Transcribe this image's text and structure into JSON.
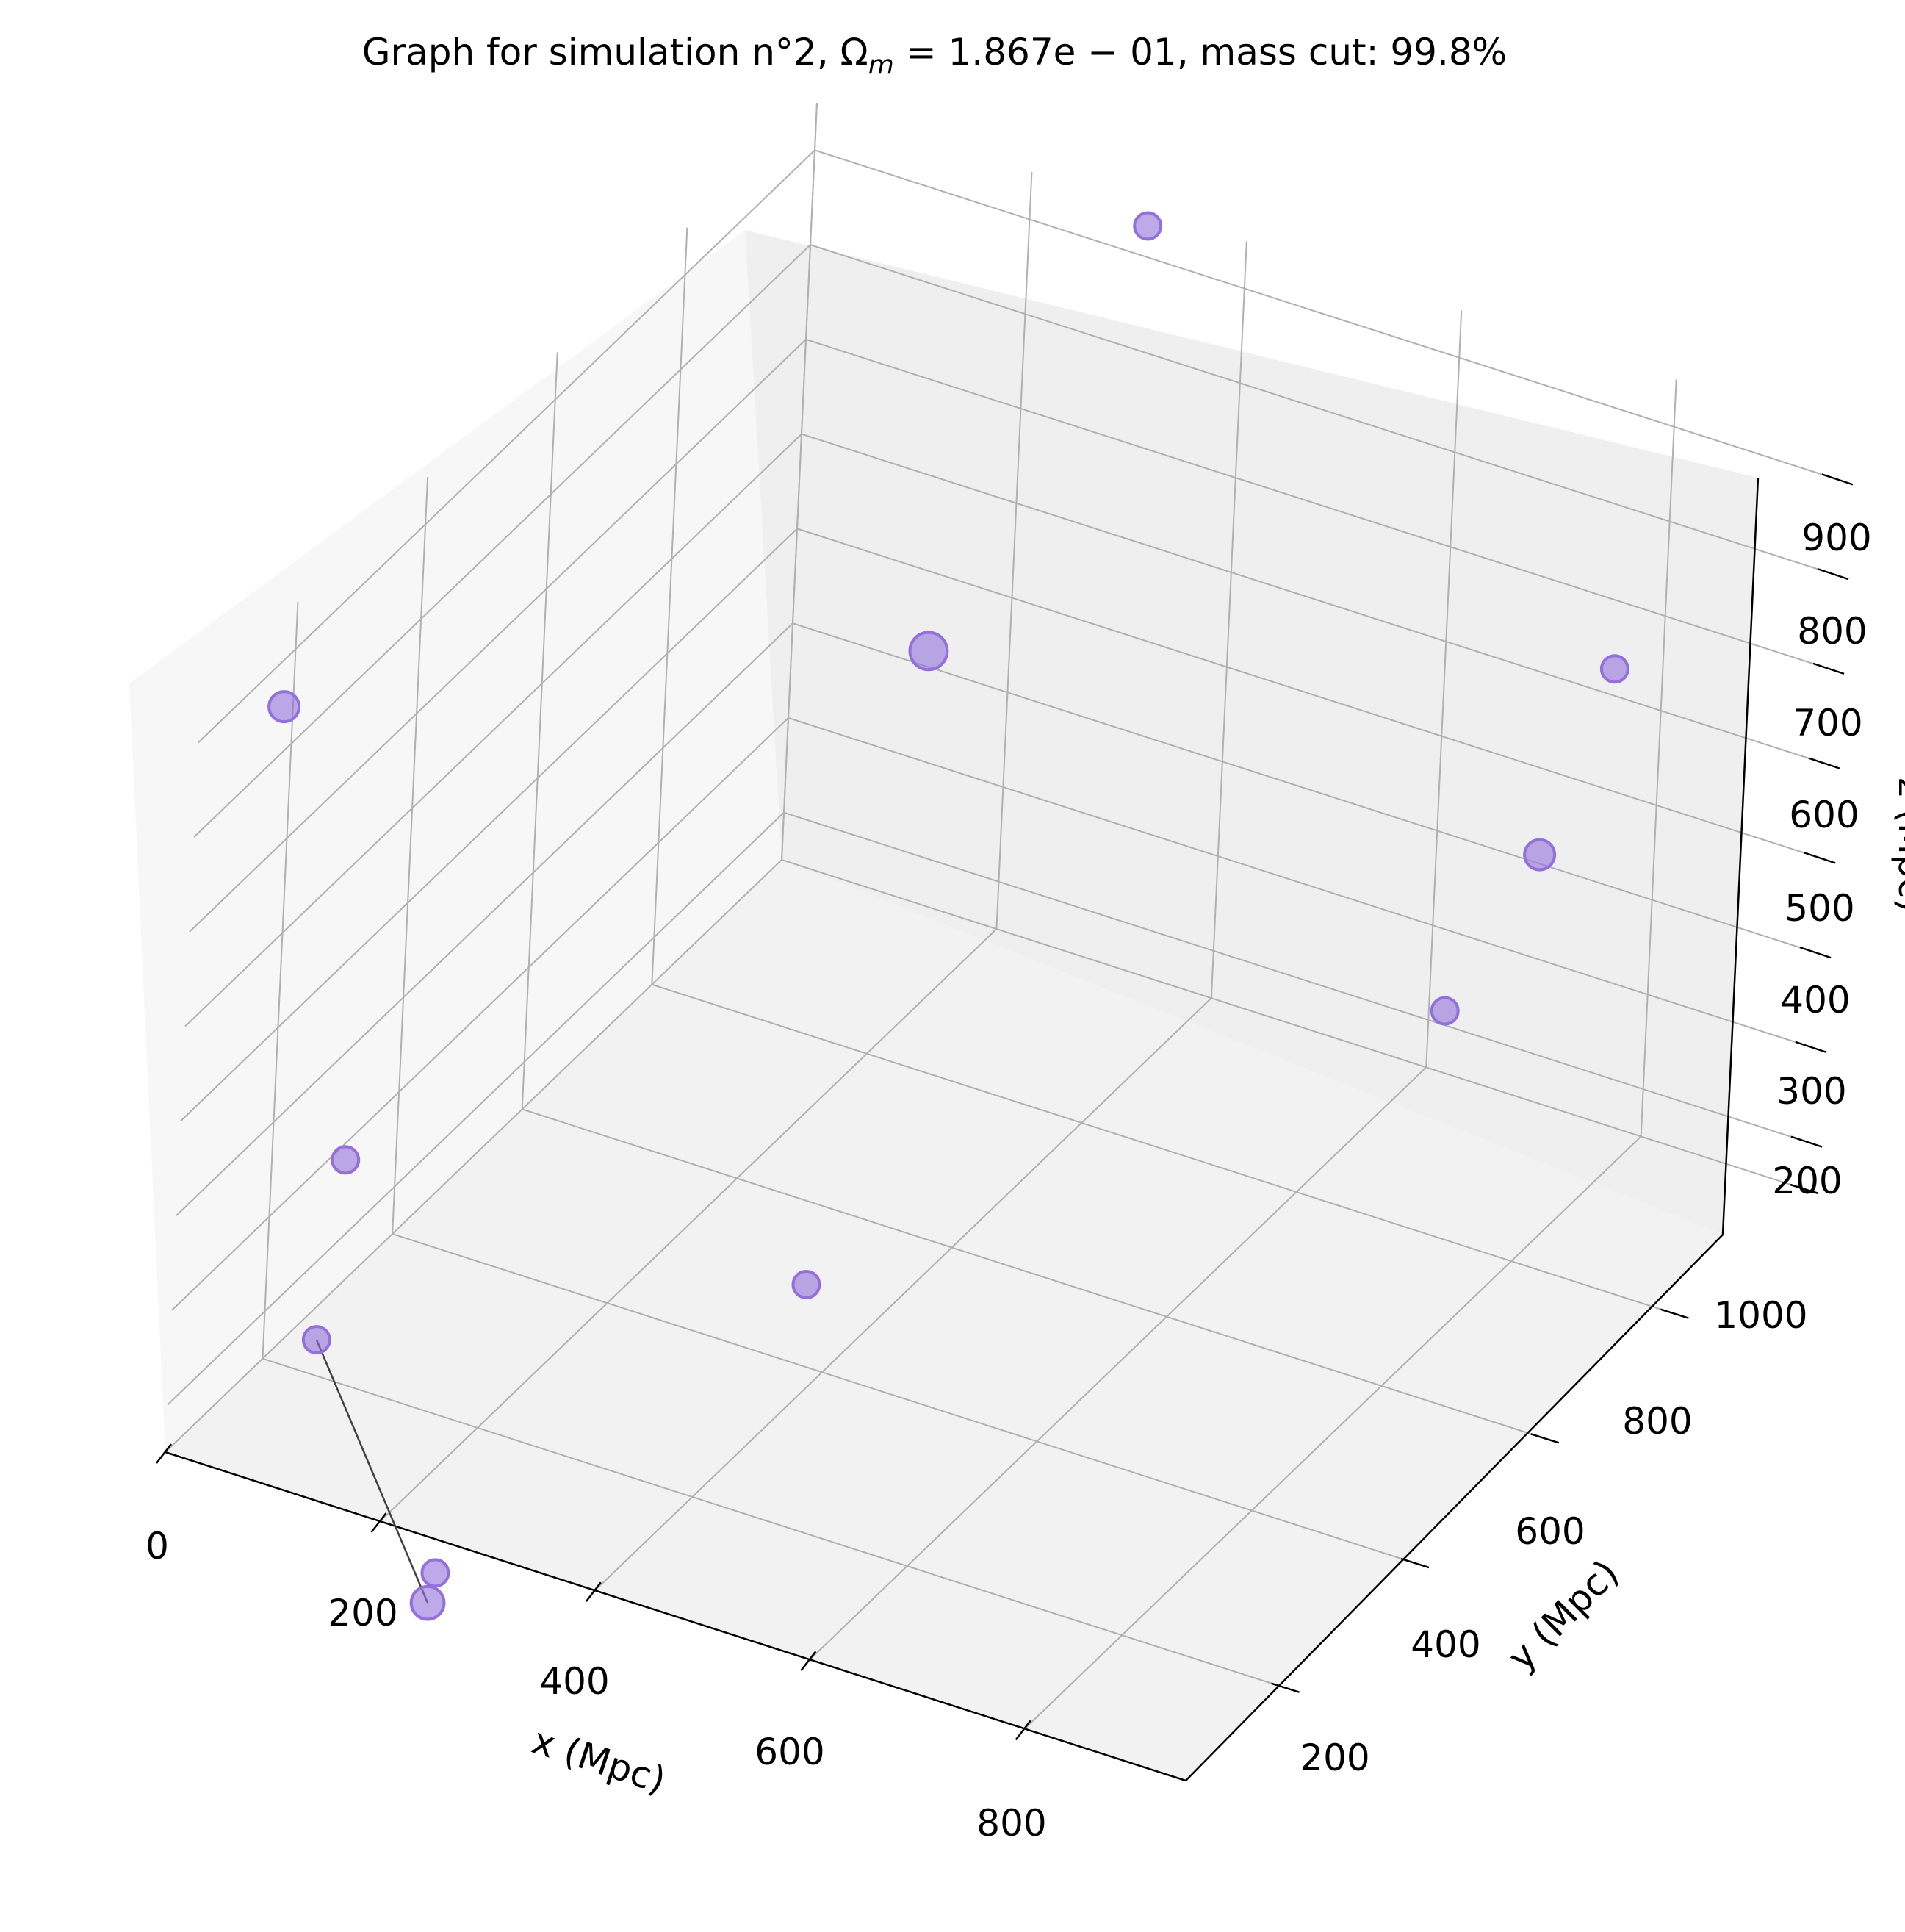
{
  "chart_data": {
    "type": "scatter",
    "subtype": "3d-scatter-graph",
    "title": "Graph for simulation n°2, Ω_m = 1.867e − 01, mass cut: 99.8%",
    "title_parts": {
      "prefix": "Graph for simulation n°2, ",
      "omega": "Ω",
      "omega_sub": "m",
      "equation": " = 1.867e − 01",
      "suffix": ", mass cut: 99.8%"
    },
    "xlabel": "x (Mpc)",
    "ylabel": "y (Mpc)",
    "zlabel": "z (Mpc)",
    "xlim": [
      0,
      950
    ],
    "ylim": [
      50,
      1000
    ],
    "zlim": [
      150,
      950
    ],
    "x_ticks": [
      "0",
      "200",
      "400",
      "600",
      "800"
    ],
    "y_ticks": [
      "200",
      "400",
      "600",
      "800",
      "1000"
    ],
    "z_ticks": [
      "200",
      "300",
      "400",
      "500",
      "600",
      "700",
      "800",
      "900"
    ],
    "grid": true,
    "marker_color": "#9370DB",
    "edge_color": "#404040",
    "points": [
      {
        "x": 60,
        "y": 80,
        "z": 940,
        "size": 2
      },
      {
        "x": 130,
        "y": 90,
        "z": 480,
        "size": 1
      },
      {
        "x": 60,
        "y": 180,
        "z": 205,
        "size": 1
      },
      {
        "x": 230,
        "y": 90,
        "z": 80,
        "size": 1
      },
      {
        "x": 230,
        "y": 80,
        "z": 55,
        "size": 3
      },
      {
        "x": 410,
        "y": 500,
        "z": 850,
        "size": 5
      },
      {
        "x": 450,
        "y": 280,
        "z": 340,
        "size": 1
      },
      {
        "x": 320,
        "y": 980,
        "z": 950,
        "size": 1
      },
      {
        "x": 700,
        "y": 850,
        "z": 345,
        "size": 1
      },
      {
        "x": 790,
        "y": 940,
        "z": 680,
        "size": 1
      },
      {
        "x": 820,
        "y": 780,
        "z": 600,
        "size": 2
      }
    ],
    "edges": [
      [
        2,
        4
      ]
    ]
  }
}
